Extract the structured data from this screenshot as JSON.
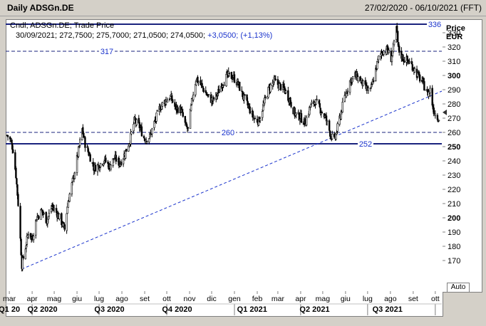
{
  "window": {
    "title": "Daily ADSGn.DE",
    "range": "27/02/2020 - 06/10/2021 (FFT)"
  },
  "legend": {
    "line1": "Cndl; ADSGn.DE; Trade Price",
    "line2_date": "30/09/2021;",
    "line2_ohlc": "272,7500; 275,7000; 271,0500; 274,0500;",
    "line2_change": "+3,0500; (+1,13%)"
  },
  "price_axis": {
    "title": "Price",
    "unit": "EUR",
    "auto_label": "Auto"
  },
  "colors": {
    "line_navy": "#1a237e",
    "dashed_blue": "#1a33cc",
    "candle": "#000000"
  },
  "chart_data": {
    "type": "candlestick",
    "ylim": [
      160,
      338
    ],
    "yticks": [
      "170",
      "180",
      "190",
      "200",
      "210",
      "220",
      "230",
      "240",
      "250",
      "260",
      "270",
      "280",
      "290",
      "300",
      "310",
      "320",
      "330"
    ],
    "ytick_values": [
      170,
      180,
      190,
      200,
      210,
      220,
      230,
      240,
      250,
      260,
      270,
      280,
      290,
      300,
      310,
      320,
      330
    ],
    "ytick_bold": [
      200,
      250,
      300
    ],
    "month_ticks": [
      "mar",
      "apr",
      "mag",
      "giu",
      "lug",
      "ago",
      "set",
      "ott",
      "nov",
      "dic",
      "gen",
      "feb",
      "mar",
      "apr",
      "mag",
      "giu",
      "lug",
      "ago",
      "set",
      "ott"
    ],
    "month_dates": [
      "2020-03-01",
      "2020-04-01",
      "2020-05-01",
      "2020-06-01",
      "2020-07-01",
      "2020-08-01",
      "2020-09-01",
      "2020-10-01",
      "2020-11-01",
      "2020-12-01",
      "2021-01-01",
      "2021-02-01",
      "2021-03-01",
      "2021-04-01",
      "2021-05-01",
      "2021-06-01",
      "2021-07-01",
      "2021-08-01",
      "2021-09-01",
      "2021-10-01"
    ],
    "quarter_labels": [
      "Q1 20",
      "Q2 2020",
      "Q3 2020",
      "Q4 2020",
      "Q1 2021",
      "Q2 2021",
      "Q3 2021"
    ],
    "quarter_label_dates": [
      "2020-03-01",
      "2020-04-15",
      "2020-07-15",
      "2020-10-15",
      "2021-01-25",
      "2021-04-20",
      "2021-07-28"
    ],
    "date_range": [
      "2020-02-27",
      "2021-10-06"
    ],
    "horizontal_lines": [
      {
        "label": "336",
        "value": 336,
        "style": "solid"
      },
      {
        "label": "317",
        "value": 317,
        "style": "dashed"
      },
      {
        "label": "260",
        "value": 260,
        "style": "dashed"
      },
      {
        "label": "252",
        "value": 252,
        "style": "solid"
      }
    ],
    "trendline": {
      "start": {
        "date": "2020-03-18",
        "price": 164
      },
      "end": {
        "date": "2021-10-06",
        "price": 289
      }
    },
    "last_price": 274.05,
    "path_anchors": [
      [
        "2020-02-27",
        258
      ],
      [
        "2020-03-03",
        254
      ],
      [
        "2020-03-06",
        248
      ],
      [
        "2020-03-10",
        230
      ],
      [
        "2020-03-13",
        210
      ],
      [
        "2020-03-16",
        185
      ],
      [
        "2020-03-18",
        167
      ],
      [
        "2020-03-20",
        172
      ],
      [
        "2020-03-24",
        182
      ],
      [
        "2020-03-27",
        190
      ],
      [
        "2020-04-01",
        185
      ],
      [
        "2020-04-07",
        200
      ],
      [
        "2020-04-14",
        205
      ],
      [
        "2020-04-21",
        198
      ],
      [
        "2020-04-28",
        208
      ],
      [
        "2020-05-05",
        203
      ],
      [
        "2020-05-12",
        196
      ],
      [
        "2020-05-15",
        192
      ],
      [
        "2020-05-20",
        212
      ],
      [
        "2020-05-28",
        230
      ],
      [
        "2020-06-03",
        247
      ],
      [
        "2020-06-08",
        262
      ],
      [
        "2020-06-12",
        252
      ],
      [
        "2020-06-18",
        244
      ],
      [
        "2020-06-24",
        235
      ],
      [
        "2020-07-01",
        237
      ],
      [
        "2020-07-08",
        241
      ],
      [
        "2020-07-15",
        236
      ],
      [
        "2020-07-22",
        242
      ],
      [
        "2020-07-29",
        238
      ],
      [
        "2020-08-05",
        245
      ],
      [
        "2020-08-12",
        255
      ],
      [
        "2020-08-18",
        268
      ],
      [
        "2020-08-25",
        264
      ],
      [
        "2020-09-01",
        255
      ],
      [
        "2020-09-08",
        257
      ],
      [
        "2020-09-15",
        268
      ],
      [
        "2020-09-22",
        278
      ],
      [
        "2020-09-29",
        282
      ],
      [
        "2020-10-06",
        285
      ],
      [
        "2020-10-13",
        277
      ],
      [
        "2020-10-20",
        276
      ],
      [
        "2020-10-27",
        264
      ],
      [
        "2020-10-30",
        262
      ],
      [
        "2020-11-05",
        285
      ],
      [
        "2020-11-10",
        298
      ],
      [
        "2020-11-18",
        292
      ],
      [
        "2020-11-25",
        286
      ],
      [
        "2020-12-02",
        282
      ],
      [
        "2020-12-09",
        287
      ],
      [
        "2020-12-16",
        295
      ],
      [
        "2020-12-23",
        300
      ],
      [
        "2020-12-30",
        299
      ],
      [
        "2021-01-06",
        294
      ],
      [
        "2021-01-13",
        285
      ],
      [
        "2021-01-20",
        278
      ],
      [
        "2021-01-27",
        270
      ],
      [
        "2021-02-03",
        268
      ],
      [
        "2021-02-10",
        280
      ],
      [
        "2021-02-17",
        291
      ],
      [
        "2021-02-24",
        296
      ],
      [
        "2021-03-03",
        293
      ],
      [
        "2021-03-10",
        290
      ],
      [
        "2021-03-17",
        283
      ],
      [
        "2021-03-24",
        273
      ],
      [
        "2021-03-31",
        271
      ],
      [
        "2021-04-07",
        267
      ],
      [
        "2021-04-14",
        278
      ],
      [
        "2021-04-21",
        282
      ],
      [
        "2021-04-28",
        276
      ],
      [
        "2021-05-05",
        270
      ],
      [
        "2021-05-12",
        258
      ],
      [
        "2021-05-17",
        254
      ],
      [
        "2021-05-24",
        270
      ],
      [
        "2021-05-31",
        285
      ],
      [
        "2021-06-07",
        296
      ],
      [
        "2021-06-14",
        300
      ],
      [
        "2021-06-21",
        297
      ],
      [
        "2021-06-28",
        291
      ],
      [
        "2021-07-05",
        289
      ],
      [
        "2021-07-12",
        304
      ],
      [
        "2021-07-16",
        312
      ],
      [
        "2021-07-21",
        317
      ],
      [
        "2021-07-28",
        318
      ],
      [
        "2021-08-02",
        312
      ],
      [
        "2021-08-06",
        322
      ],
      [
        "2021-08-09",
        333
      ],
      [
        "2021-08-12",
        318
      ],
      [
        "2021-08-18",
        312
      ],
      [
        "2021-08-25",
        310
      ],
      [
        "2021-09-01",
        306
      ],
      [
        "2021-09-07",
        300
      ],
      [
        "2021-09-14",
        295
      ],
      [
        "2021-09-20",
        287
      ],
      [
        "2021-09-24",
        290
      ],
      [
        "2021-09-28",
        277
      ],
      [
        "2021-09-30",
        274
      ],
      [
        "2021-10-04",
        271
      ],
      [
        "2021-10-06",
        270
      ]
    ]
  }
}
